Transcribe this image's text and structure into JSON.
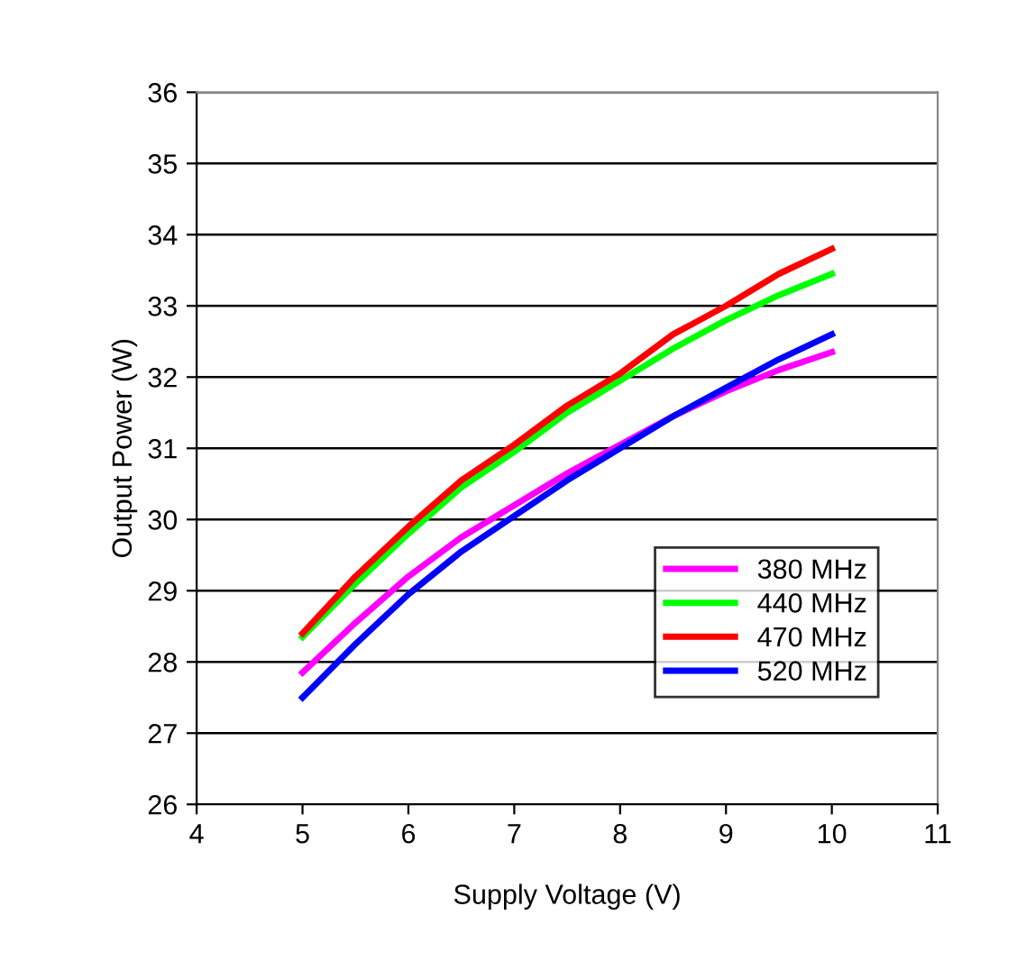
{
  "chart_data": {
    "type": "line",
    "xlabel": "Supply Voltage (V)",
    "ylabel": "Output Power (W)",
    "x": [
      5,
      5.5,
      6,
      6.5,
      7,
      7.5,
      8,
      8.5,
      9,
      9.5,
      10
    ],
    "series": [
      {
        "name": "380 MHz",
        "color": "#ff00ff",
        "values": [
          27.85,
          28.55,
          29.2,
          29.75,
          30.2,
          30.65,
          31.05,
          31.45,
          31.8,
          32.1,
          32.35
        ]
      },
      {
        "name": "440 MHz",
        "color": "#00ff00",
        "values": [
          28.35,
          29.1,
          29.8,
          30.45,
          30.95,
          31.5,
          31.95,
          32.4,
          32.8,
          33.15,
          33.45
        ]
      },
      {
        "name": "470 MHz",
        "color": "#ff0000",
        "values": [
          28.4,
          29.2,
          29.9,
          30.55,
          31.05,
          31.6,
          32.05,
          32.6,
          33.0,
          33.45,
          33.8
        ]
      },
      {
        "name": "520 MHz",
        "color": "#0000ff",
        "values": [
          27.5,
          28.25,
          28.95,
          29.55,
          30.05,
          30.55,
          31.0,
          31.45,
          31.85,
          32.25,
          32.6
        ]
      }
    ],
    "xlim": [
      4,
      11
    ],
    "xticks": [
      4,
      5,
      6,
      7,
      8,
      9,
      10,
      11
    ],
    "ylim": [
      26,
      36
    ],
    "yticks": [
      26,
      27,
      28,
      29,
      30,
      31,
      32,
      33,
      34,
      35,
      36
    ],
    "grid": "y",
    "legend": "bottom right",
    "marker": "none",
    "line_style": "solid"
  }
}
